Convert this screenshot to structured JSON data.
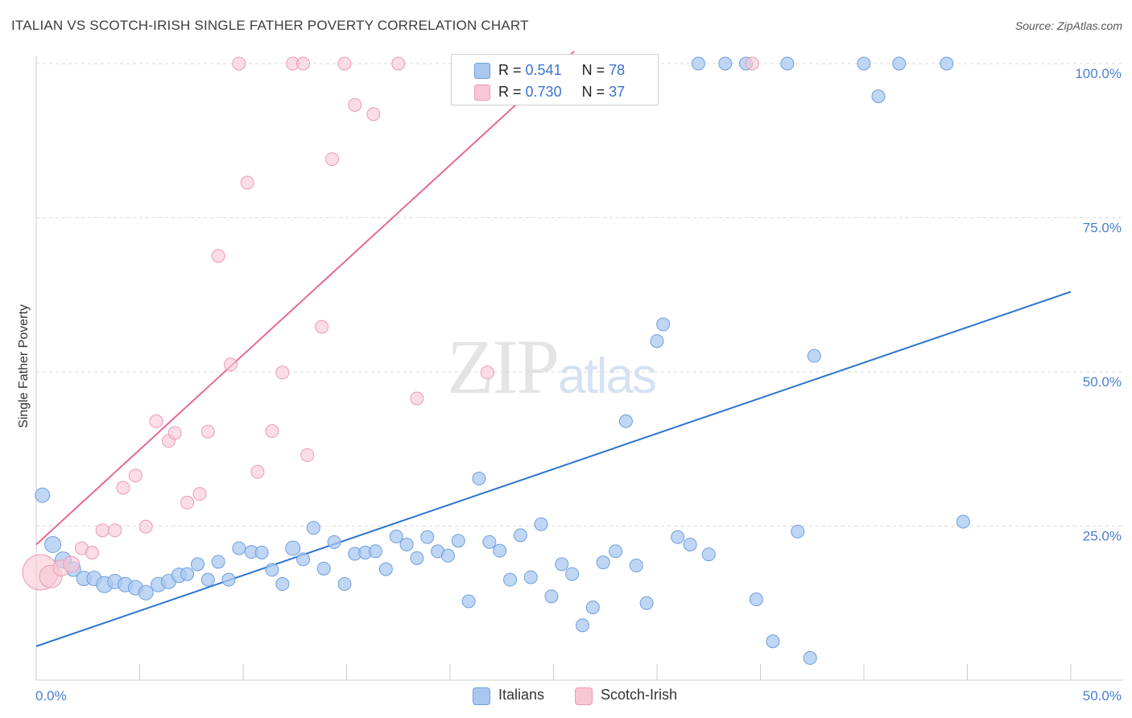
{
  "header": {
    "title": "ITALIAN VS SCOTCH-IRISH SINGLE FATHER POVERTY CORRELATION CHART",
    "source": "Source: ZipAtlas.com"
  },
  "watermark": {
    "zip": "ZIP",
    "atlas": "atlas"
  },
  "legend_top": {
    "rows": [
      {
        "r_label": "R =",
        "r_value": "0.541",
        "n_label": "N =",
        "n_value": "78"
      },
      {
        "r_label": "R =",
        "r_value": "0.730",
        "n_label": "N =",
        "n_value": "37"
      }
    ]
  },
  "legend_bottom": {
    "italians": "Italians",
    "scotch_irish": "Scotch-Irish"
  },
  "colors": {
    "italians_fill": "#a9c8f0",
    "italians_stroke": "#6f9fdd",
    "italians_line": "#2e74d0",
    "scotch_fill": "#f8c6d5",
    "scotch_stroke": "#ec9ab3",
    "scotch_line": "#e86990",
    "tick_label": "#4a7fd0"
  },
  "chart_data": {
    "type": "scatter",
    "title": "ITALIAN VS SCOTCH-IRISH SINGLE FATHER POVERTY CORRELATION CHART",
    "xlabel": "",
    "ylabel": "Single Father Poverty",
    "xlim": [
      0,
      50
    ],
    "ylim": [
      0,
      102
    ],
    "x_tick_labels": [
      "0.0%",
      "50.0%"
    ],
    "y_tick_labels": [
      "25.0%",
      "50.0%",
      "75.0%",
      "100.0%"
    ],
    "y_ticks": [
      25,
      50,
      75,
      100
    ],
    "grid": true,
    "legend_position": "top-center",
    "series": [
      {
        "name": "Italians",
        "trendline": [
          [
            0,
            5.5
          ],
          [
            50,
            63
          ]
        ],
        "points": [
          [
            0.3,
            30,
            9
          ],
          [
            0.8,
            22,
            10
          ],
          [
            1.3,
            19.5,
            10
          ],
          [
            1.8,
            18,
            9
          ],
          [
            2.3,
            16.5,
            9
          ],
          [
            2.8,
            16.5,
            9
          ],
          [
            3.3,
            15.5,
            10
          ],
          [
            3.8,
            16,
            9
          ],
          [
            4.3,
            15.5,
            9
          ],
          [
            4.8,
            15,
            9
          ],
          [
            5.3,
            14.2,
            9
          ],
          [
            5.9,
            15.5,
            9
          ],
          [
            6.4,
            16,
            9
          ],
          [
            6.9,
            17,
            9
          ],
          [
            7.3,
            17.2,
            8
          ],
          [
            7.8,
            18.8,
            8
          ],
          [
            8.3,
            16.3,
            8
          ],
          [
            8.8,
            19.2,
            8
          ],
          [
            9.3,
            16.3,
            8
          ],
          [
            9.8,
            21.4,
            8
          ],
          [
            10.4,
            20.8,
            8
          ],
          [
            10.9,
            20.7,
            8
          ],
          [
            11.4,
            17.9,
            8
          ],
          [
            11.9,
            15.6,
            8
          ],
          [
            12.4,
            21.4,
            9
          ],
          [
            12.9,
            19.6,
            8
          ],
          [
            13.4,
            24.7,
            8
          ],
          [
            13.9,
            18.1,
            8
          ],
          [
            14.4,
            22.4,
            8
          ],
          [
            14.9,
            15.6,
            8
          ],
          [
            15.4,
            20.5,
            8
          ],
          [
            15.9,
            20.7,
            8
          ],
          [
            16.4,
            20.9,
            8
          ],
          [
            16.9,
            18.0,
            8
          ],
          [
            17.4,
            23.3,
            8
          ],
          [
            17.9,
            22.0,
            8
          ],
          [
            18.4,
            19.8,
            8
          ],
          [
            18.9,
            23.2,
            8
          ],
          [
            19.4,
            20.9,
            8
          ],
          [
            19.9,
            20.2,
            8
          ],
          [
            20.4,
            22.6,
            8
          ],
          [
            20.9,
            12.8,
            8
          ],
          [
            21.4,
            32.7,
            8
          ],
          [
            21.9,
            22.4,
            8
          ],
          [
            22.4,
            21.0,
            8
          ],
          [
            22.9,
            16.3,
            8
          ],
          [
            23.4,
            23.5,
            8
          ],
          [
            23.9,
            16.7,
            8
          ],
          [
            24.4,
            25.3,
            8
          ],
          [
            24.9,
            13.6,
            8
          ],
          [
            25.4,
            18.8,
            8
          ],
          [
            25.9,
            17.2,
            8
          ],
          [
            26.4,
            8.9,
            8
          ],
          [
            26.9,
            11.8,
            8
          ],
          [
            27.4,
            19.1,
            8
          ],
          [
            28.0,
            20.9,
            8
          ],
          [
            28.5,
            42.0,
            8
          ],
          [
            29.0,
            18.6,
            8
          ],
          [
            29.5,
            12.5,
            8
          ],
          [
            30.0,
            55.0,
            8
          ],
          [
            30.3,
            57.7,
            8
          ],
          [
            31.0,
            23.2,
            8
          ],
          [
            31.6,
            22.0,
            8
          ],
          [
            32.5,
            20.4,
            8
          ],
          [
            34.3,
            100,
            8
          ],
          [
            34.8,
            13.1,
            8
          ],
          [
            35.6,
            6.3,
            8
          ],
          [
            36.3,
            100,
            8
          ],
          [
            36.8,
            24.1,
            8
          ],
          [
            37.4,
            3.6,
            8
          ],
          [
            37.6,
            52.6,
            8
          ],
          [
            40.0,
            100,
            8
          ],
          [
            40.7,
            94.7,
            8
          ],
          [
            41.7,
            100,
            8
          ],
          [
            44.0,
            100,
            8
          ],
          [
            44.8,
            25.7,
            8
          ],
          [
            33.3,
            100,
            8
          ],
          [
            32.0,
            100,
            8
          ]
        ]
      },
      {
        "name": "Scotch-Irish",
        "trendline": [
          [
            0,
            22
          ],
          [
            26,
            102
          ]
        ],
        "points": [
          [
            0.2,
            17.5,
            22
          ],
          [
            0.7,
            16.8,
            14
          ],
          [
            1.2,
            18.2,
            10
          ],
          [
            1.7,
            18.8,
            10
          ],
          [
            2.2,
            21.4,
            8
          ],
          [
            2.7,
            20.7,
            8
          ],
          [
            3.2,
            24.3,
            8
          ],
          [
            3.8,
            24.3,
            8
          ],
          [
            4.2,
            31.2,
            8
          ],
          [
            4.8,
            33.2,
            8
          ],
          [
            5.3,
            24.9,
            8
          ],
          [
            5.8,
            42.0,
            8
          ],
          [
            6.4,
            38.8,
            8
          ],
          [
            6.7,
            40.1,
            8
          ],
          [
            7.3,
            28.8,
            8
          ],
          [
            7.9,
            30.2,
            8
          ],
          [
            8.3,
            40.3,
            8
          ],
          [
            8.8,
            68.8,
            8
          ],
          [
            9.4,
            51.2,
            8
          ],
          [
            9.8,
            100,
            8
          ],
          [
            10.2,
            80.7,
            8
          ],
          [
            10.7,
            33.8,
            8
          ],
          [
            11.4,
            40.4,
            8
          ],
          [
            11.9,
            49.9,
            8
          ],
          [
            12.4,
            100,
            8
          ],
          [
            12.9,
            100,
            8
          ],
          [
            13.1,
            36.5,
            8
          ],
          [
            13.8,
            57.3,
            8
          ],
          [
            14.3,
            84.5,
            8
          ],
          [
            14.9,
            100,
            8
          ],
          [
            15.4,
            93.3,
            8
          ],
          [
            16.3,
            91.8,
            8
          ],
          [
            17.5,
            100,
            8
          ],
          [
            18.4,
            45.7,
            8
          ],
          [
            21.8,
            49.9,
            8
          ],
          [
            24.9,
            100,
            8
          ],
          [
            34.6,
            100,
            8
          ]
        ]
      }
    ]
  }
}
